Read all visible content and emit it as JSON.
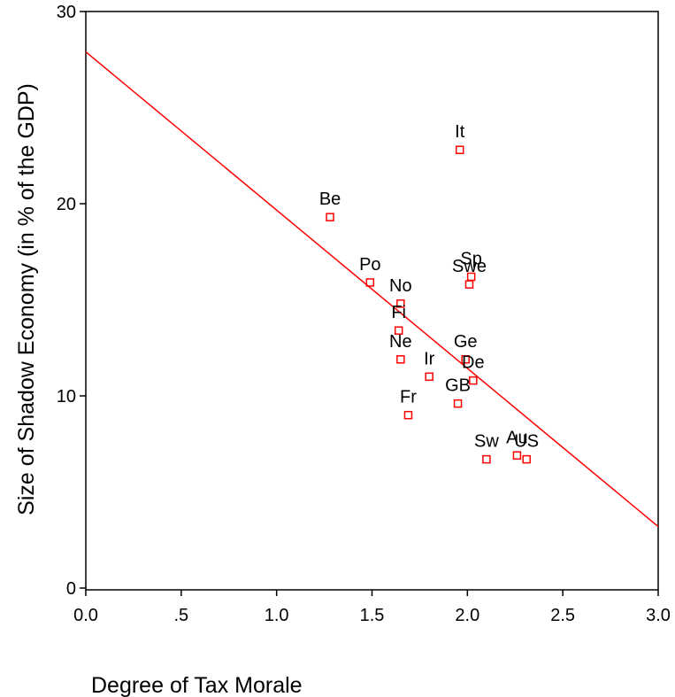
{
  "chart_data": {
    "type": "scatter",
    "xlabel": "Degree of Tax Morale",
    "ylabel": "Size of Shadow Economy (in % of the GDP)",
    "xlim": [
      0,
      3
    ],
    "ylim": [
      0,
      30
    ],
    "x_ticks": [
      {
        "value": 0,
        "label": "0.0"
      },
      {
        "value": 0.5,
        "label": ".5"
      },
      {
        "value": 1.0,
        "label": "1.0"
      },
      {
        "value": 1.5,
        "label": "1.5"
      },
      {
        "value": 2.0,
        "label": "2.0"
      },
      {
        "value": 2.5,
        "label": "2.5"
      },
      {
        "value": 3.0,
        "label": "3.0"
      }
    ],
    "y_ticks": [
      {
        "value": 0,
        "label": "0"
      },
      {
        "value": 10,
        "label": "10"
      },
      {
        "value": 20,
        "label": "20"
      },
      {
        "value": 30,
        "label": "30"
      }
    ],
    "grid": false,
    "marker_color": "#ff0000",
    "line_color": "#ff0000",
    "fit_line": {
      "x": [
        0,
        3
      ],
      "y": [
        27.9,
        3.2
      ]
    },
    "points": [
      {
        "label": "It",
        "x": 1.96,
        "y": 22.8
      },
      {
        "label": "Be",
        "x": 1.28,
        "y": 19.3
      },
      {
        "label": "Po",
        "x": 1.49,
        "y": 15.9
      },
      {
        "label": "No",
        "x": 1.65,
        "y": 14.8
      },
      {
        "label": "Fi",
        "x": 1.64,
        "y": 13.4
      },
      {
        "label": "Ne",
        "x": 1.65,
        "y": 11.9
      },
      {
        "label": "Ir",
        "x": 1.8,
        "y": 11.0
      },
      {
        "label": "Fr",
        "x": 1.69,
        "y": 9.0
      },
      {
        "label": "Sp",
        "x": 2.02,
        "y": 16.2
      },
      {
        "label": "Swe",
        "x": 2.01,
        "y": 15.8
      },
      {
        "label": "Ge",
        "x": 1.99,
        "y": 11.9
      },
      {
        "label": "De",
        "x": 2.03,
        "y": 10.8
      },
      {
        "label": "GB",
        "x": 1.95,
        "y": 9.6
      },
      {
        "label": "Sw",
        "x": 2.1,
        "y": 6.7
      },
      {
        "label": "Au",
        "x": 2.26,
        "y": 6.9
      },
      {
        "label": "US",
        "x": 2.31,
        "y": 6.7
      }
    ]
  }
}
